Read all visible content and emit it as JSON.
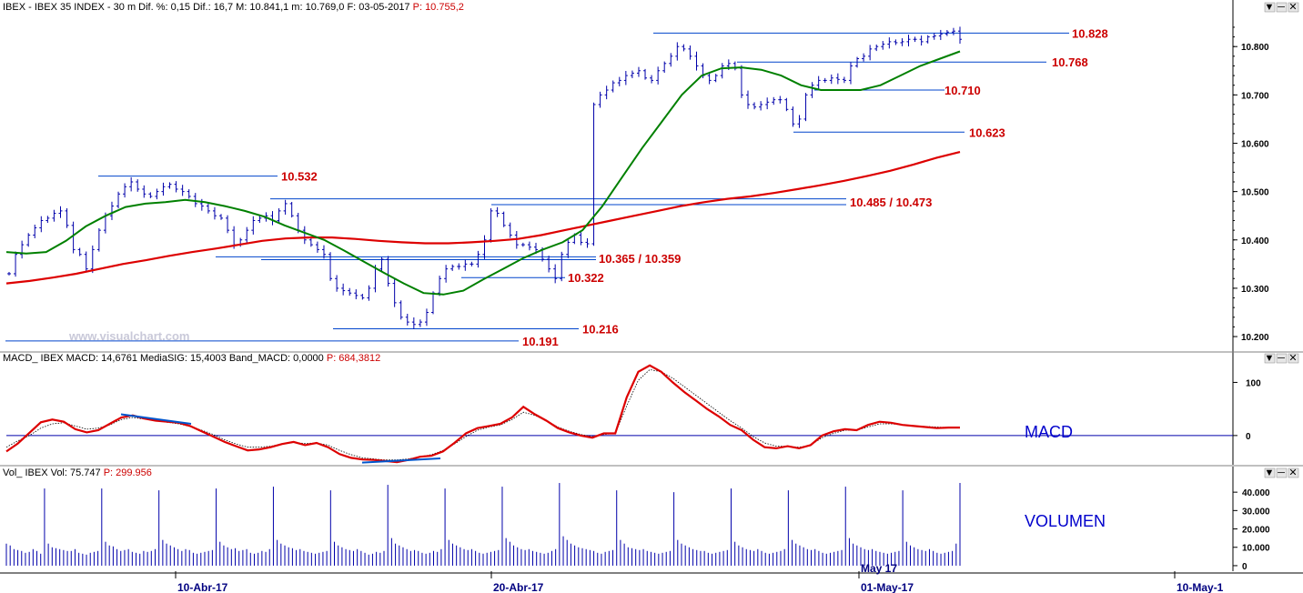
{
  "panels": {
    "price": {
      "header_parts": [
        {
          "text": "IBEX - IBEX 35 INDEX -  30 m  Dif. %: 0,15  Dif.: 16,7  M: 10.841,1  m: 10.769,0  F: 03-05-2017",
          "color": "#000000"
        },
        {
          "text": "  P: 10.755,2",
          "color": "#cc0000"
        }
      ],
      "watermark": "www.visualchart.com"
    },
    "macd": {
      "header_parts": [
        {
          "text": "MACD_ IBEX MACD: 14,6761  MediaSIG: 15,4003  Band_MACD: 0,0000",
          "color": "#000000"
        },
        {
          "text": "  P: 684,3812",
          "color": "#cc0000"
        }
      ],
      "label": "MACD"
    },
    "volume": {
      "header_parts": [
        {
          "text": "Vol_ IBEX Vol: 75.747",
          "color": "#000000"
        },
        {
          "text": "  P: 299.956",
          "color": "#cc0000"
        }
      ],
      "label": "VOLUMEN"
    }
  },
  "colors": {
    "bars": "#0000aa",
    "ma_fast": "#008000",
    "ma_slow": "#dd0000",
    "levels": "#0044cc",
    "level_labels": "#cc0000",
    "macd_line": "#dd0000",
    "signal_line": "#000000",
    "divergence": "#0055cc"
  },
  "chart_data": [
    {
      "type": "ohlc",
      "name": "price",
      "title": "IBEX - IBEX 35 INDEX - 30 m",
      "ylim": [
        10170,
        10870
      ],
      "y_ticks": [
        "10.200",
        "10.300",
        "10.400",
        "10.500",
        "10.600",
        "10.700",
        "10.800"
      ],
      "x_ticks": [
        "10-Abr-17",
        "20-Abr-17",
        "01-May-17",
        "10-May-1"
      ],
      "x_sublabel": "May 17",
      "series": [
        {
          "name": "close",
          "values": [
            10330,
            10370,
            10390,
            10410,
            10425,
            10440,
            10445,
            10455,
            10460,
            10430,
            10380,
            10370,
            10340,
            10380,
            10420,
            10450,
            10470,
            10495,
            10510,
            10520,
            10505,
            10495,
            10490,
            10500,
            10510,
            10515,
            10505,
            10500,
            10490,
            10475,
            10470,
            10460,
            10450,
            10445,
            10420,
            10390,
            10400,
            10420,
            10440,
            10445,
            10450,
            10440,
            10460,
            10475,
            10450,
            10420,
            10400,
            10390,
            10380,
            10370,
            10320,
            10300,
            10295,
            10290,
            10285,
            10280,
            10300,
            10340,
            10360,
            10310,
            10270,
            10240,
            10230,
            10225,
            10230,
            10250,
            10290,
            10320,
            10340,
            10345,
            10345,
            10350,
            10350,
            10370,
            10400,
            10460,
            10455,
            10430,
            10410,
            10390,
            10390,
            10385,
            10380,
            10360,
            10340,
            10320,
            10370,
            10395,
            10410,
            10395,
            10392,
            10680,
            10700,
            10710,
            10725,
            10730,
            10740,
            10745,
            10750,
            10735,
            10730,
            10750,
            10765,
            10780,
            10800,
            10795,
            10780,
            10760,
            10740,
            10730,
            10740,
            10760,
            10765,
            10755,
            10700,
            10680,
            10675,
            10680,
            10685,
            10690,
            10690,
            10670,
            10640,
            10650,
            10700,
            10720,
            10730,
            10730,
            10735,
            10732,
            10730,
            10760,
            10775,
            10780,
            10795,
            10800,
            10805,
            10810,
            10808,
            10810,
            10815,
            10815,
            10810,
            10820,
            10822,
            10826,
            10830,
            10832,
            10815
          ]
        }
      ]
    },
    {
      "type": "line",
      "name": "moving-averages",
      "series": [
        {
          "values": [
            10375,
            10372,
            10375,
            10398,
            10428,
            10450,
            10468,
            10475,
            10478,
            10483,
            10478,
            10470,
            10460,
            10448,
            10430,
            10415,
            10400,
            10378,
            10355,
            10332,
            10310,
            10290,
            10287,
            10295,
            10318,
            10340,
            10362,
            10380,
            10395,
            10420,
            10470,
            10530,
            10590,
            10645,
            10700,
            10740,
            10755,
            10757,
            10752,
            10740,
            10720,
            10710,
            10710,
            10710,
            10720,
            10740,
            10760,
            10775,
            10790
          ]
        },
        {
          "values": [
            10310,
            10315,
            10322,
            10330,
            10340,
            10350,
            10358,
            10367,
            10375,
            10382,
            10390,
            10398,
            10403,
            10405,
            10405,
            10402,
            10398,
            10395,
            10393,
            10393,
            10395,
            10398,
            10402,
            10410,
            10420,
            10430,
            10440,
            10450,
            10460,
            10470,
            10478,
            10485,
            10490,
            10497,
            10505,
            10513,
            10522,
            10532,
            10543,
            10556,
            10570,
            10582
          ]
        }
      ]
    },
    {
      "type": "line",
      "name": "support-resistance",
      "levels": [
        {
          "label": "10.828",
          "value": 10828
        },
        {
          "label": "10.768",
          "value": 10768
        },
        {
          "label": "10.710",
          "value": 10710
        },
        {
          "label": "10.623",
          "value": 10623
        },
        {
          "label": "10.532",
          "value": 10532
        },
        {
          "label": "10.485 / 10.473",
          "value": 10485,
          "value2": 10473
        },
        {
          "label": "10.365 / 10.359",
          "value": 10365,
          "value2": 10359
        },
        {
          "label": "10.322",
          "value": 10322
        },
        {
          "label": "10.216",
          "value": 10216
        },
        {
          "label": "10.191",
          "value": 10191
        }
      ]
    },
    {
      "type": "line",
      "name": "MACD",
      "ylim": [
        -55,
        135
      ],
      "y_ticks": [
        "100",
        "0"
      ],
      "zero_line": 0,
      "series": [
        {
          "values": [
            -30,
            -15,
            5,
            25,
            30,
            26,
            12,
            6,
            10,
            22,
            34,
            38,
            32,
            28,
            26,
            24,
            18,
            8,
            -2,
            -12,
            -20,
            -28,
            -26,
            -22,
            -16,
            -12,
            -18,
            -14,
            -22,
            -35,
            -42,
            -45,
            -46,
            -48,
            -50,
            -46,
            -40,
            -38,
            -30,
            -14,
            4,
            14,
            18,
            22,
            34,
            54,
            40,
            28,
            14,
            6,
            0,
            -4,
            4,
            4,
            72,
            120,
            132,
            120,
            100,
            82,
            66,
            50,
            36,
            20,
            10,
            -8,
            -22,
            -24,
            -20,
            -24,
            -18,
            0,
            8,
            12,
            10,
            20,
            26,
            24,
            20,
            18,
            16,
            14,
            15,
            15
          ]
        },
        {
          "values": [
            -22,
            -10,
            0,
            14,
            22,
            24,
            18,
            12,
            14,
            20,
            30,
            34,
            31,
            28,
            25,
            22,
            17,
            10,
            2,
            -8,
            -16,
            -22,
            -22,
            -20,
            -16,
            -13,
            -15,
            -14,
            -18,
            -28,
            -36,
            -42,
            -44,
            -46,
            -46,
            -44,
            -40,
            -36,
            -28,
            -16,
            -2,
            10,
            16,
            20,
            30,
            44,
            38,
            28,
            16,
            8,
            2,
            -2,
            2,
            4,
            56,
            104,
            124,
            120,
            108,
            92,
            76,
            60,
            44,
            28,
            14,
            -2,
            -14,
            -20,
            -20,
            -22,
            -18,
            -4,
            4,
            10,
            10,
            16,
            22,
            22,
            20,
            18,
            17,
            16,
            15,
            15
          ]
        }
      ]
    },
    {
      "type": "bar",
      "name": "Volume",
      "ylim": [
        -3000,
        47000
      ],
      "y_ticks": [
        "40.000",
        "30.000",
        "20.000",
        "10.000",
        "0"
      ],
      "series": [
        {
          "name": "Vol",
          "values": [
            12000,
            11000,
            9000,
            8500,
            8000,
            7000,
            7500,
            9000,
            8000,
            6500,
            42000,
            12000,
            10000,
            9500,
            9000,
            8500,
            8000,
            8000,
            9000,
            7000,
            6500,
            6000,
            7000,
            7500,
            8000,
            42000,
            13000,
            11000,
            10500,
            9000,
            8000,
            8500,
            9000,
            7500,
            7000,
            6500,
            8000,
            7500,
            8000,
            9000,
            41000,
            14000,
            12000,
            11000,
            10000,
            9000,
            8000,
            9000,
            8500,
            7000,
            6500,
            7000,
            7500,
            8000,
            8500,
            42000,
            13000,
            11000,
            10000,
            9000,
            9500,
            8000,
            8500,
            9000,
            7000,
            6500,
            7000,
            8000,
            7500,
            9000,
            43000,
            14000,
            12000,
            11000,
            10000,
            9500,
            8500,
            9000,
            8000,
            7500,
            7000,
            6500,
            7000,
            7500,
            8000,
            41000,
            13000,
            11000,
            10000,
            9000,
            8500,
            8000,
            9000,
            8000,
            7000,
            6000,
            6500,
            7500,
            7000,
            8000,
            44000,
            15000,
            12000,
            11000,
            10000,
            9000,
            8000,
            8500,
            8000,
            7000,
            6500,
            7000,
            8000,
            7500,
            9000,
            42000,
            14000,
            12000,
            11000,
            10000,
            9000,
            8500,
            9000,
            8000,
            7000,
            6500,
            7000,
            7500,
            8000,
            8500,
            43000,
            15000,
            13000,
            11000,
            10000,
            9000,
            8500,
            9000,
            8000,
            7500,
            7000,
            6500,
            7000,
            8000,
            9000,
            45000,
            16000,
            14000,
            12000,
            11000,
            10000,
            9500,
            9000,
            8500,
            8000,
            7000,
            6500,
            7500,
            8000,
            8500,
            41000,
            14000,
            12000,
            10000,
            9500,
            9000,
            8500,
            9000,
            8000,
            7500,
            7000,
            6500,
            7000,
            7500,
            8000,
            40000,
            14000,
            12000,
            11000,
            10000,
            9000,
            8500,
            8000,
            8000,
            7000,
            6500,
            7000,
            7500,
            8000,
            8500,
            42000,
            13000,
            11000,
            10000,
            9000,
            8500,
            8000,
            9000,
            8000,
            7000,
            6500,
            7000,
            7500,
            8000,
            9000,
            41000,
            14000,
            12000,
            11000,
            10000,
            9000,
            8500,
            9000,
            8000,
            7000,
            6500,
            7000,
            7500,
            8000,
            8500,
            43000,
            15000,
            12000,
            11000,
            10000,
            9000,
            8500,
            9000,
            8000,
            7500,
            7000,
            6500,
            7000,
            7500,
            8000,
            41000,
            13000,
            11000,
            10000,
            9000,
            8500,
            8000,
            9000,
            8000,
            7000,
            6500,
            7000,
            7500,
            8000,
            12000,
            45000
          ]
        }
      ]
    }
  ]
}
